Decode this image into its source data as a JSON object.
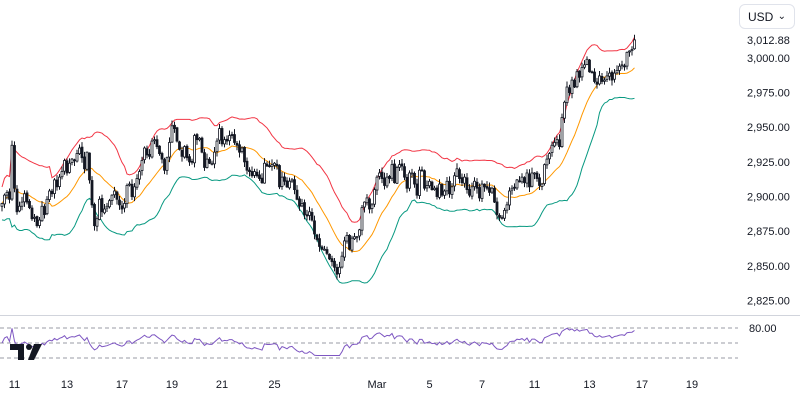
{
  "currency_selector": {
    "label": "USD",
    "icon": "chevron-down-icon"
  },
  "logo": {
    "icon": "tradingview-logo-icon"
  },
  "colors": {
    "up": "#131722",
    "down": "#131722",
    "bb_upper": "#f23645",
    "bb_middle": "#ff9800",
    "bb_lower": "#089981",
    "rsi": "#7e57c2",
    "grid_dashed": "#787b86",
    "axis_text": "#131722",
    "divider": "#d1d4dc"
  },
  "chart_data": [
    {
      "type": "candlestick",
      "y_axis": {
        "ticks": [
          "3,000.00",
          "2,975.00",
          "2,950.00",
          "2,925.00",
          "2,900.00",
          "2,875.00",
          "2,850.00",
          "2,825.00"
        ],
        "tick_values": [
          3000,
          2975,
          2950,
          2925,
          2900,
          2875,
          2850,
          2825
        ],
        "range": [
          2816,
          3036
        ],
        "last_price_label": "3,012.88",
        "last_price": 3012.88
      },
      "x_axis": {
        "ticks": [
          "11",
          "13",
          "17",
          "19",
          "21",
          "25",
          "Mar",
          "5",
          "7",
          "11",
          "13",
          "17",
          "19"
        ],
        "tick_bar_index": [
          5,
          26,
          48,
          68,
          88,
          109,
          150,
          171,
          192,
          213,
          235,
          256,
          276
        ]
      },
      "close": [
        2895,
        2901,
        2903,
        2898,
        2937,
        2906,
        2889,
        2893,
        2896,
        2902,
        2896,
        2892,
        2884,
        2885,
        2879,
        2883,
        2893,
        2887,
        2898,
        2904,
        2902,
        2912,
        2907,
        2914,
        2918,
        2926,
        2917,
        2924,
        2927,
        2926,
        2931,
        2935,
        2928,
        2920,
        2932,
        2912,
        2894,
        2879,
        2884,
        2898,
        2889,
        2891,
        2893,
        2897,
        2901,
        2904,
        2898,
        2894,
        2891,
        2895,
        2908,
        2909,
        2900,
        2907,
        2913,
        2918,
        2926,
        2935,
        2930,
        2929,
        2940,
        2941,
        2936,
        2931,
        2927,
        2919,
        2928,
        2939,
        2951,
        2949,
        2940,
        2934,
        2929,
        2936,
        2928,
        2925,
        2925,
        2944,
        2941,
        2942,
        2932,
        2921,
        2927,
        2924,
        2924,
        2932,
        2940,
        2949,
        2938,
        2941,
        2940,
        2944,
        2944,
        2939,
        2937,
        2932,
        2935,
        2925,
        2919,
        2918,
        2915,
        2918,
        2915,
        2913,
        2910,
        2924,
        2922,
        2922,
        2923,
        2924,
        2922,
        2907,
        2914,
        2911,
        2907,
        2911,
        2912,
        2905,
        2898,
        2893,
        2895,
        2887,
        2886,
        2889,
        2883,
        2873,
        2869,
        2864,
        2862,
        2862,
        2859,
        2855,
        2853,
        2849,
        2844,
        2849,
        2857,
        2868,
        2872,
        2862,
        2870,
        2871,
        2871,
        2876,
        2892,
        2896,
        2899,
        2891,
        2894,
        2905,
        2914,
        2917,
        2913,
        2908,
        2914,
        2913,
        2923,
        2910,
        2921,
        2923,
        2922,
        2914,
        2906,
        2917,
        2917,
        2909,
        2901,
        2919,
        2919,
        2906,
        2908,
        2911,
        2905,
        2906,
        2900,
        2909,
        2901,
        2904,
        2911,
        2902,
        2907,
        2915,
        2920,
        2913,
        2910,
        2914,
        2905,
        2901,
        2907,
        2911,
        2906,
        2899,
        2909,
        2907,
        2906,
        2903,
        2906,
        2896,
        2887,
        2885,
        2885,
        2890,
        2894,
        2904,
        2906,
        2906,
        2912,
        2911,
        2914,
        2910,
        2917,
        2907,
        2917,
        2917,
        2913,
        2908,
        2909,
        2923,
        2927,
        2931,
        2937,
        2939,
        2941,
        2936,
        2957,
        2968,
        2979,
        2975,
        2984,
        2979,
        2990,
        2986,
        2993,
        2995,
        2999,
        2990,
        2990,
        2983,
        2981,
        2987,
        2983,
        2984,
        2987,
        2989,
        2984,
        2989,
        2991,
        2994,
        2995,
        2994,
        3004,
        3005,
        3006,
        3013
      ],
      "series": [
        {
          "name": "",
          "role": "bollinger-upper",
          "smoothing": 16,
          "offset": 26.4,
          "adaptive": 1.1
        },
        {
          "name": "",
          "role": "bollinger-basis",
          "smoothing": 16
        },
        {
          "name": "",
          "role": "bollinger-lower",
          "smoothing": 16,
          "offset": -26.4,
          "adaptive": 1.1
        }
      ],
      "grid": false,
      "legend": "none"
    },
    {
      "type": "line",
      "indicator": "rsi",
      "y_axis": {
        "ticks": [
          "80.00"
        ],
        "range": [
          0,
          100
        ]
      },
      "levels": [
        80,
        50,
        20
      ],
      "smoothing": 14,
      "grid": false
    }
  ]
}
